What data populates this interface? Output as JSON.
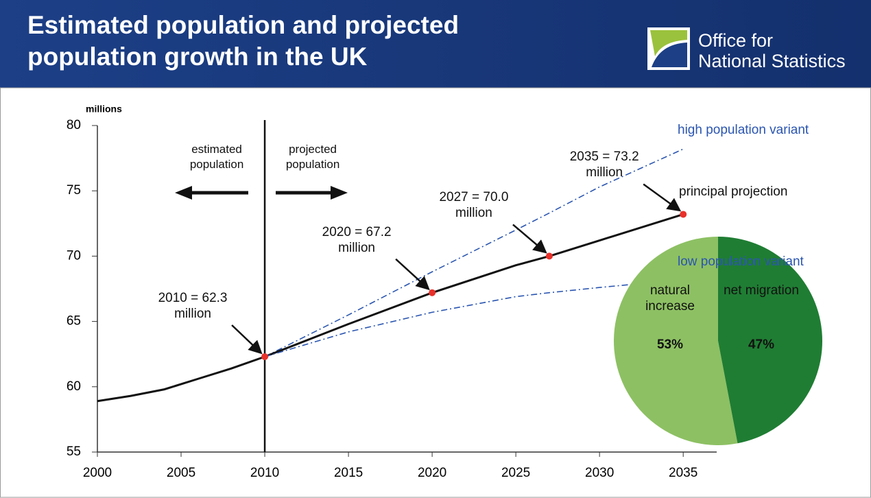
{
  "header": {
    "logo": [
      "Office for",
      "National Statistics"
    ]
  },
  "chart_data": [
    {
      "type": "line",
      "title": "Estimated population and projected population growth in the UK",
      "y_label": "millions",
      "region_labels": [
        "estimated population",
        "projected population"
      ],
      "divider_x": 2010,
      "x": [
        2000,
        2002,
        2004,
        2006,
        2008,
        2010,
        2015,
        2020,
        2025,
        2027,
        2030,
        2035
      ],
      "xlim": [
        2000,
        2037
      ],
      "xticks": [
        2000,
        2005,
        2010,
        2015,
        2020,
        2025,
        2030,
        2035
      ],
      "ylim": [
        55,
        80
      ],
      "yticks": [
        55,
        60,
        65,
        70,
        75,
        80
      ],
      "series": [
        {
          "name": "high population variant",
          "color": "#2a55b0",
          "dash": "dashdot",
          "values": [
            null,
            null,
            null,
            null,
            null,
            62.3,
            65.5,
            68.8,
            72.0,
            73.3,
            75.3,
            78.2
          ]
        },
        {
          "name": "principal projection",
          "color": "#111111",
          "dash": "solid",
          "values": [
            58.9,
            59.3,
            59.8,
            60.6,
            61.4,
            62.3,
            64.8,
            67.2,
            69.3,
            70.0,
            71.2,
            73.2
          ]
        },
        {
          "name": "low population variant",
          "color": "#2a55b0",
          "dash": "dashdot",
          "values": [
            null,
            null,
            null,
            null,
            null,
            62.3,
            64.2,
            65.7,
            66.9,
            67.2,
            67.6,
            68.2
          ]
        }
      ],
      "annotations": [
        {
          "text": "2010 = 62.3 million",
          "x": 2010,
          "y": 62.3
        },
        {
          "text": "2020 = 67.2 million",
          "x": 2020,
          "y": 67.2
        },
        {
          "text": "2027 = 70.0 million",
          "x": 2027,
          "y": 70.0
        },
        {
          "text": "2035 = 73.2 million",
          "x": 2035,
          "y": 73.2
        }
      ],
      "marker_color": "#e8312a"
    },
    {
      "type": "pie",
      "categories": [
        "natural increase",
        "net migration"
      ],
      "values": [
        53,
        47
      ],
      "value_labels": [
        "53%",
        "47%"
      ],
      "colors": [
        "#8dc063",
        "#1f7d33"
      ]
    }
  ]
}
